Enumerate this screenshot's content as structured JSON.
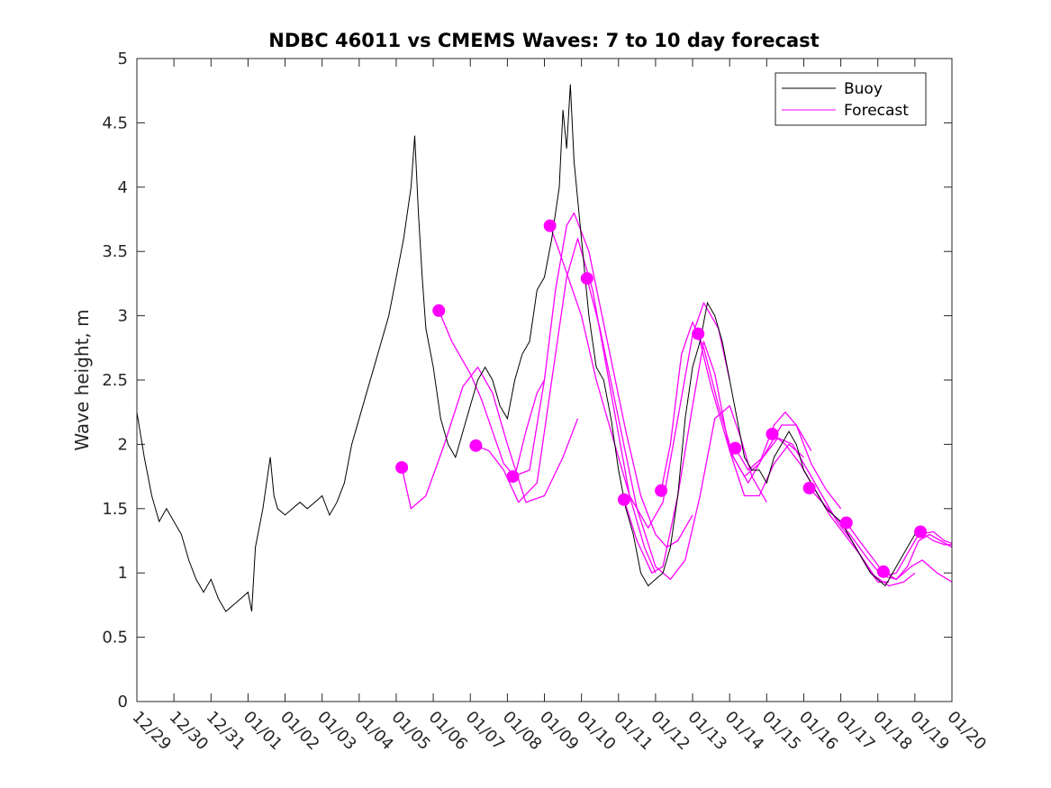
{
  "chart_data": {
    "type": "line",
    "title": "NDBC 46011 vs CMEMS Waves: 7 to 10 day forecast",
    "xlabel": "",
    "ylabel": "Wave height, m",
    "x_unit": "days since 12/29",
    "xlim": [
      0,
      22
    ],
    "ylim": [
      0,
      5
    ],
    "ytick_values": [
      0,
      0.5,
      1,
      1.5,
      2,
      2.5,
      3,
      3.5,
      4,
      4.5,
      5
    ],
    "ytick_labels": [
      "0",
      "0.5",
      "1",
      "1.5",
      "2",
      "2.5",
      "3",
      "3.5",
      "4",
      "4.5",
      "5"
    ],
    "xtick_labels": [
      "12/29",
      "12/30",
      "12/31",
      "01/01",
      "01/02",
      "01/03",
      "01/04",
      "01/05",
      "01/06",
      "01/07",
      "01/08",
      "01/09",
      "01/10",
      "01/11",
      "01/12",
      "01/13",
      "01/14",
      "01/15",
      "01/16",
      "01/17",
      "01/18",
      "01/19",
      "01/20"
    ],
    "legend": {
      "location": "top-right",
      "entries": [
        {
          "label": "Buoy",
          "color": "#000000"
        },
        {
          "label": "Forecast",
          "color": "#ff00ff"
        }
      ]
    },
    "series": [
      {
        "name": "Buoy",
        "color": "#000000",
        "points": [
          [
            0,
            2.25
          ],
          [
            0.2,
            1.9
          ],
          [
            0.4,
            1.6
          ],
          [
            0.6,
            1.4
          ],
          [
            0.8,
            1.5
          ],
          [
            1.0,
            1.4
          ],
          [
            1.2,
            1.3
          ],
          [
            1.4,
            1.1
          ],
          [
            1.6,
            0.95
          ],
          [
            1.8,
            0.85
          ],
          [
            2.0,
            0.95
          ],
          [
            2.2,
            0.8
          ],
          [
            2.4,
            0.7
          ],
          [
            2.6,
            0.75
          ],
          [
            2.8,
            0.8
          ],
          [
            3.0,
            0.85
          ],
          [
            3.1,
            0.7
          ],
          [
            3.2,
            1.2
          ],
          [
            3.4,
            1.5
          ],
          [
            3.5,
            1.7
          ],
          [
            3.6,
            1.9
          ],
          [
            3.7,
            1.6
          ],
          [
            3.8,
            1.5
          ],
          [
            4.0,
            1.45
          ],
          [
            4.2,
            1.5
          ],
          [
            4.4,
            1.55
          ],
          [
            4.6,
            1.5
          ],
          [
            4.8,
            1.55
          ],
          [
            5.0,
            1.6
          ],
          [
            5.2,
            1.45
          ],
          [
            5.4,
            1.55
          ],
          [
            5.6,
            1.7
          ],
          [
            5.8,
            2.0
          ],
          [
            6.0,
            2.2
          ],
          [
            6.2,
            2.4
          ],
          [
            6.4,
            2.6
          ],
          [
            6.6,
            2.8
          ],
          [
            6.8,
            3.0
          ],
          [
            7.0,
            3.3
          ],
          [
            7.2,
            3.6
          ],
          [
            7.4,
            4.0
          ],
          [
            7.5,
            4.4
          ],
          [
            7.6,
            3.8
          ],
          [
            7.7,
            3.3
          ],
          [
            7.8,
            2.9
          ],
          [
            8.0,
            2.6
          ],
          [
            8.2,
            2.2
          ],
          [
            8.4,
            2.0
          ],
          [
            8.6,
            1.9
          ],
          [
            8.8,
            2.1
          ],
          [
            9.0,
            2.3
          ],
          [
            9.2,
            2.5
          ],
          [
            9.4,
            2.6
          ],
          [
            9.6,
            2.5
          ],
          [
            9.8,
            2.3
          ],
          [
            10.0,
            2.2
          ],
          [
            10.2,
            2.5
          ],
          [
            10.4,
            2.7
          ],
          [
            10.6,
            2.8
          ],
          [
            10.8,
            3.2
          ],
          [
            11.0,
            3.3
          ],
          [
            11.2,
            3.6
          ],
          [
            11.4,
            4.0
          ],
          [
            11.5,
            4.6
          ],
          [
            11.6,
            4.3
          ],
          [
            11.7,
            4.8
          ],
          [
            11.8,
            4.2
          ],
          [
            12.0,
            3.6
          ],
          [
            12.2,
            3.0
          ],
          [
            12.4,
            2.6
          ],
          [
            12.6,
            2.5
          ],
          [
            12.8,
            2.2
          ],
          [
            13.0,
            1.8
          ],
          [
            13.2,
            1.5
          ],
          [
            13.4,
            1.3
          ],
          [
            13.6,
            1.0
          ],
          [
            13.8,
            0.9
          ],
          [
            14.0,
            0.95
          ],
          [
            14.2,
            1.0
          ],
          [
            14.4,
            1.2
          ],
          [
            14.6,
            1.6
          ],
          [
            14.8,
            2.2
          ],
          [
            15.0,
            2.6
          ],
          [
            15.2,
            2.8
          ],
          [
            15.4,
            3.1
          ],
          [
            15.6,
            3.0
          ],
          [
            15.8,
            2.8
          ],
          [
            16.0,
            2.5
          ],
          [
            16.2,
            2.2
          ],
          [
            16.4,
            1.9
          ],
          [
            16.6,
            1.8
          ],
          [
            16.8,
            1.8
          ],
          [
            17.0,
            1.7
          ],
          [
            17.2,
            1.9
          ],
          [
            17.4,
            2.0
          ],
          [
            17.6,
            2.1
          ],
          [
            17.8,
            2.0
          ],
          [
            18.0,
            1.8
          ],
          [
            18.2,
            1.7
          ],
          [
            18.4,
            1.6
          ],
          [
            18.6,
            1.5
          ],
          [
            18.8,
            1.45
          ],
          [
            19.0,
            1.4
          ],
          [
            19.2,
            1.3
          ],
          [
            19.4,
            1.2
          ],
          [
            19.6,
            1.1
          ],
          [
            19.8,
            1.0
          ],
          [
            20.0,
            0.95
          ],
          [
            20.2,
            0.9
          ],
          [
            20.4,
            1.0
          ],
          [
            20.6,
            1.1
          ],
          [
            20.8,
            1.2
          ],
          [
            21.0,
            1.3
          ],
          [
            21.2,
            1.35
          ]
        ]
      }
    ],
    "forecast_series": [
      {
        "name": "Forecast 01/05",
        "points": [
          [
            7.15,
            1.82
          ],
          [
            7.4,
            1.5
          ],
          [
            7.8,
            1.6
          ],
          [
            8.3,
            2.0
          ],
          [
            8.8,
            2.45
          ],
          [
            9.2,
            2.6
          ],
          [
            9.6,
            2.4
          ],
          [
            10.0,
            2.0
          ],
          [
            10.5,
            1.55
          ],
          [
            11.0,
            1.6
          ],
          [
            11.5,
            1.9
          ],
          [
            11.9,
            2.2
          ]
        ]
      },
      {
        "name": "Forecast 01/06",
        "points": [
          [
            8.15,
            3.04
          ],
          [
            8.5,
            2.8
          ],
          [
            9.0,
            2.55
          ],
          [
            9.3,
            2.35
          ],
          [
            9.6,
            2.1
          ],
          [
            9.9,
            1.85
          ],
          [
            10.2,
            1.75
          ],
          [
            10.5,
            2.1
          ],
          [
            10.8,
            2.4
          ],
          [
            11.0,
            2.5
          ]
        ]
      },
      {
        "name": "Forecast 01/07",
        "points": [
          [
            9.15,
            1.99
          ],
          [
            9.5,
            1.95
          ],
          [
            9.9,
            1.8
          ],
          [
            10.3,
            1.55
          ],
          [
            10.8,
            1.7
          ],
          [
            11.3,
            2.7
          ],
          [
            11.6,
            3.3
          ],
          [
            11.9,
            3.6
          ],
          [
            12.3,
            3.2
          ],
          [
            12.8,
            2.4
          ],
          [
            13.3,
            1.6
          ],
          [
            13.7,
            1.2
          ],
          [
            14.0,
            1.0
          ]
        ]
      },
      {
        "name": "Forecast 01/08",
        "points": [
          [
            10.15,
            1.75
          ],
          [
            10.6,
            1.8
          ],
          [
            11.0,
            2.5
          ],
          [
            11.3,
            3.2
          ],
          [
            11.6,
            3.7
          ],
          [
            11.8,
            3.8
          ],
          [
            12.2,
            3.5
          ],
          [
            12.7,
            2.8
          ],
          [
            13.2,
            2.1
          ],
          [
            13.6,
            1.6
          ],
          [
            14.0,
            1.3
          ],
          [
            14.3,
            1.2
          ],
          [
            14.6,
            1.25
          ],
          [
            15.0,
            1.45
          ]
        ]
      },
      {
        "name": "Forecast 01/09",
        "points": [
          [
            11.15,
            3.7
          ],
          [
            11.4,
            3.5
          ],
          [
            12.0,
            3.0
          ],
          [
            12.4,
            2.5
          ],
          [
            12.8,
            2.1
          ],
          [
            13.3,
            1.6
          ],
          [
            13.8,
            1.35
          ],
          [
            14.2,
            1.55
          ],
          [
            14.6,
            2.2
          ],
          [
            15.0,
            2.85
          ],
          [
            15.3,
            3.1
          ],
          [
            15.7,
            2.9
          ],
          [
            16.0,
            2.5
          ]
        ]
      },
      {
        "name": "Forecast 01/10",
        "points": [
          [
            12.15,
            3.29
          ],
          [
            12.5,
            2.9
          ],
          [
            13.0,
            2.2
          ],
          [
            13.5,
            1.5
          ],
          [
            14.0,
            1.05
          ],
          [
            14.4,
            0.95
          ],
          [
            14.8,
            1.1
          ],
          [
            15.2,
            1.6
          ],
          [
            15.6,
            2.2
          ],
          [
            16.0,
            2.3
          ],
          [
            16.3,
            2.05
          ],
          [
            16.6,
            1.75
          ],
          [
            17.0,
            1.55
          ]
        ]
      },
      {
        "name": "Forecast 01/11",
        "points": [
          [
            13.15,
            1.57
          ],
          [
            13.5,
            1.25
          ],
          [
            13.9,
            1.0
          ],
          [
            14.2,
            1.05
          ],
          [
            14.6,
            1.6
          ],
          [
            15.0,
            2.3
          ],
          [
            15.3,
            2.8
          ],
          [
            15.6,
            2.55
          ],
          [
            16.0,
            1.95
          ],
          [
            16.4,
            1.6
          ],
          [
            16.8,
            1.6
          ],
          [
            17.2,
            1.85
          ],
          [
            17.6,
            2.0
          ],
          [
            18.0,
            1.9
          ]
        ]
      },
      {
        "name": "Forecast 01/12",
        "points": [
          [
            14.15,
            1.64
          ],
          [
            14.4,
            2.0
          ],
          [
            14.7,
            2.7
          ],
          [
            15.0,
            2.95
          ],
          [
            15.3,
            2.75
          ],
          [
            15.7,
            2.3
          ],
          [
            16.1,
            1.9
          ],
          [
            16.5,
            1.7
          ],
          [
            17.0,
            1.95
          ],
          [
            17.4,
            2.15
          ],
          [
            17.8,
            2.15
          ],
          [
            18.2,
            1.95
          ]
        ]
      },
      {
        "name": "Forecast 01/13",
        "points": [
          [
            15.15,
            2.86
          ],
          [
            15.5,
            2.45
          ],
          [
            16.0,
            1.95
          ],
          [
            16.4,
            1.75
          ],
          [
            16.8,
            1.85
          ],
          [
            17.2,
            2.15
          ],
          [
            17.5,
            2.25
          ],
          [
            17.8,
            2.15
          ],
          [
            18.2,
            1.85
          ],
          [
            18.6,
            1.65
          ],
          [
            19.0,
            1.5
          ]
        ]
      },
      {
        "name": "Forecast 01/14",
        "points": [
          [
            16.15,
            1.97
          ],
          [
            16.5,
            1.8
          ],
          [
            16.9,
            1.9
          ],
          [
            17.3,
            2.05
          ],
          [
            17.7,
            2.0
          ],
          [
            18.1,
            1.8
          ],
          [
            18.5,
            1.6
          ],
          [
            18.9,
            1.4
          ],
          [
            19.3,
            1.25
          ],
          [
            19.7,
            1.05
          ],
          [
            20.0,
            0.93
          ],
          [
            20.3,
            0.93
          ]
        ]
      },
      {
        "name": "Forecast 01/15",
        "points": [
          [
            17.15,
            2.08
          ],
          [
            17.5,
            2.0
          ],
          [
            17.9,
            1.85
          ],
          [
            18.3,
            1.65
          ],
          [
            18.7,
            1.45
          ],
          [
            19.1,
            1.3
          ],
          [
            19.5,
            1.15
          ],
          [
            19.9,
            0.98
          ],
          [
            20.3,
            0.9
          ],
          [
            20.7,
            0.93
          ],
          [
            21.0,
            1.0
          ]
        ]
      },
      {
        "name": "Forecast 01/16",
        "points": [
          [
            18.15,
            1.66
          ],
          [
            18.5,
            1.55
          ],
          [
            18.9,
            1.42
          ],
          [
            19.3,
            1.28
          ],
          [
            19.7,
            1.12
          ],
          [
            20.1,
            0.98
          ],
          [
            20.5,
            0.95
          ],
          [
            20.9,
            1.05
          ],
          [
            21.2,
            1.1
          ],
          [
            21.6,
            1.0
          ],
          [
            22.0,
            0.93
          ]
        ]
      },
      {
        "name": "Forecast 01/17",
        "points": [
          [
            19.15,
            1.39
          ],
          [
            19.5,
            1.25
          ],
          [
            19.9,
            1.1
          ],
          [
            20.2,
            0.98
          ],
          [
            20.5,
            1.0
          ],
          [
            20.8,
            1.15
          ],
          [
            21.1,
            1.3
          ],
          [
            21.5,
            1.32
          ],
          [
            21.8,
            1.25
          ],
          [
            22.0,
            1.23
          ]
        ]
      },
      {
        "name": "Forecast 01/18",
        "points": [
          [
            20.15,
            1.01
          ],
          [
            20.5,
            0.95
          ],
          [
            20.8,
            1.05
          ],
          [
            21.1,
            1.25
          ],
          [
            21.4,
            1.3
          ],
          [
            21.7,
            1.25
          ],
          [
            22.0,
            1.2
          ]
        ]
      },
      {
        "name": "Forecast 01/19",
        "points": [
          [
            21.15,
            1.32
          ],
          [
            21.5,
            1.25
          ],
          [
            21.8,
            1.22
          ],
          [
            22.0,
            1.22
          ]
        ]
      }
    ]
  }
}
